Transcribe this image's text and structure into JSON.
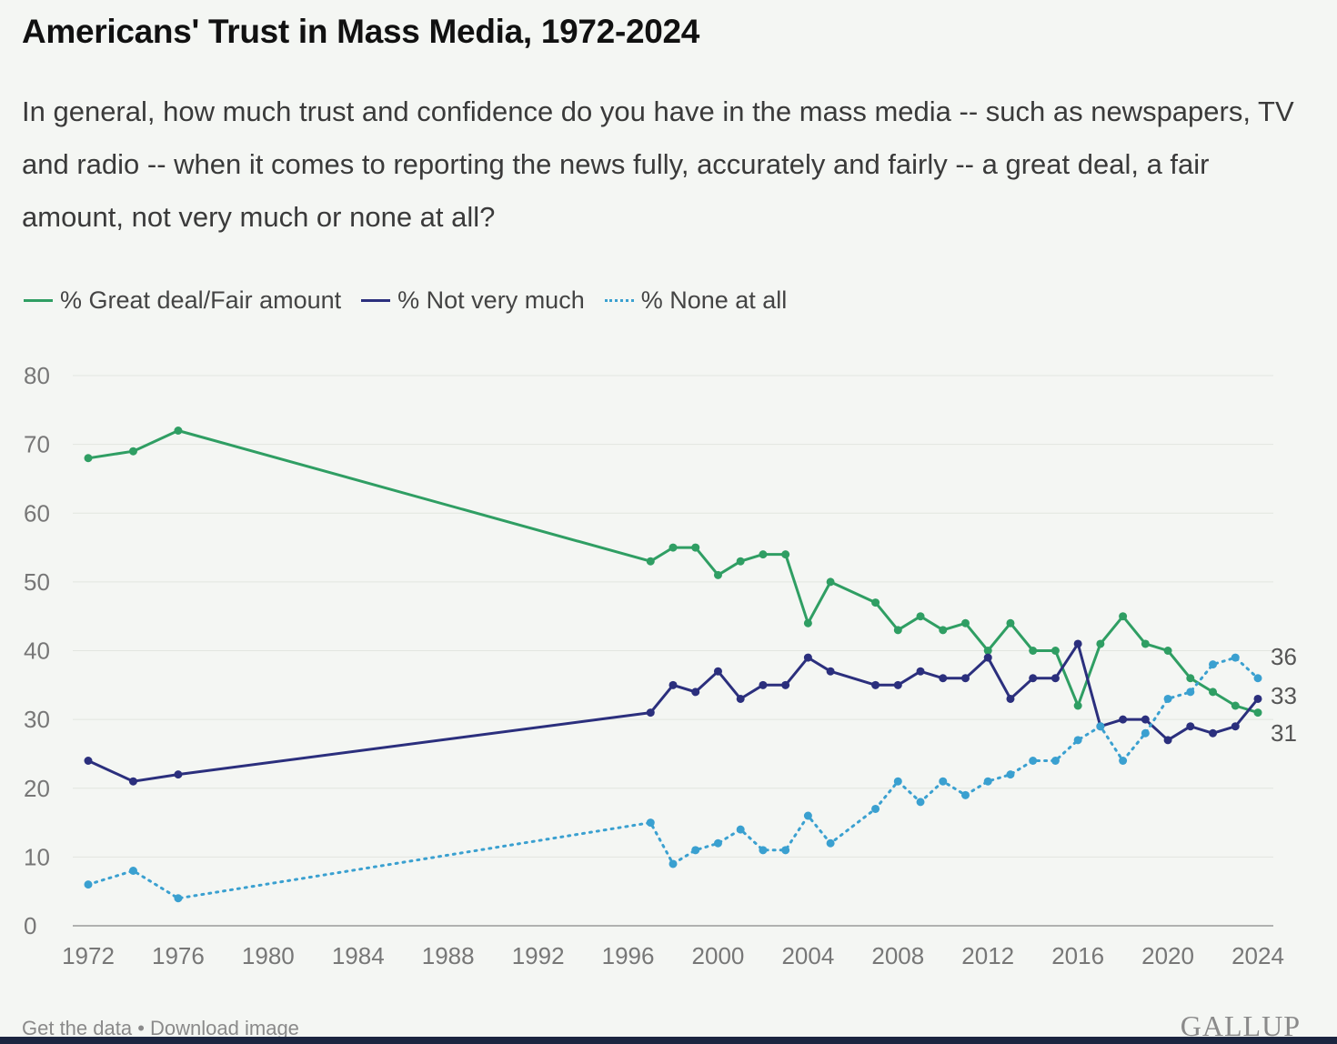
{
  "header": {
    "title": "Americans' Trust in Mass Media, 1972-2024",
    "subtitle": "In general, how much trust and confidence do you have in the mass media -- such as newspapers, TV and radio -- when it comes to reporting the news fully, accurately and fairly -- a great deal, a fair amount, not very much or none at all?"
  },
  "footer": {
    "get_data": "Get the data",
    "separator": "•",
    "download": "Download image",
    "logo": "GALLUP"
  },
  "colors": {
    "great_deal": "#2f9e63",
    "not_very_much": "#2b2f7d",
    "none_at_all": "#3aa0d0",
    "grid": "#e2e5e0"
  },
  "chart_data": {
    "type": "line",
    "title": "Americans' Trust in Mass Media, 1972-2024",
    "xlabel": "",
    "ylabel": "",
    "xlim": [
      1972,
      2024
    ],
    "ylim": [
      0,
      80
    ],
    "x_ticks": [
      "1972",
      "1976",
      "1980",
      "1984",
      "1988",
      "1992",
      "1996",
      "2000",
      "2004",
      "2008",
      "2012",
      "2016",
      "2020",
      "2024"
    ],
    "y_ticks": [
      "0",
      "10",
      "20",
      "30",
      "40",
      "50",
      "60",
      "70",
      "80"
    ],
    "grid": true,
    "legend_position": "top-left",
    "series": [
      {
        "name": "% Great deal/Fair amount",
        "style": "solid",
        "color": "#2f9e63",
        "x": [
          1972,
          1974,
          1976,
          1997,
          1998,
          1999,
          2000,
          2001,
          2002,
          2003,
          2004,
          2005,
          2007,
          2008,
          2009,
          2010,
          2011,
          2012,
          2013,
          2014,
          2015,
          2016,
          2017,
          2018,
          2019,
          2020,
          2021,
          2022,
          2023,
          2024
        ],
        "values": [
          68,
          69,
          72,
          53,
          55,
          55,
          51,
          53,
          54,
          54,
          44,
          50,
          47,
          43,
          45,
          43,
          44,
          40,
          44,
          40,
          40,
          32,
          41,
          45,
          41,
          40,
          36,
          34,
          32,
          31
        ],
        "end_label": "31"
      },
      {
        "name": "% Not very much",
        "style": "solid",
        "color": "#2b2f7d",
        "x": [
          1972,
          1974,
          1976,
          1997,
          1998,
          1999,
          2000,
          2001,
          2002,
          2003,
          2004,
          2005,
          2007,
          2008,
          2009,
          2010,
          2011,
          2012,
          2013,
          2014,
          2015,
          2016,
          2017,
          2018,
          2019,
          2020,
          2021,
          2022,
          2023,
          2024
        ],
        "values": [
          24,
          21,
          22,
          31,
          35,
          34,
          37,
          33,
          35,
          35,
          39,
          37,
          35,
          35,
          37,
          36,
          36,
          39,
          33,
          36,
          36,
          41,
          29,
          30,
          30,
          27,
          29,
          28,
          29,
          33
        ],
        "end_label": "33"
      },
      {
        "name": "% None at all",
        "style": "dotted",
        "color": "#3aa0d0",
        "x": [
          1972,
          1974,
          1976,
          1997,
          1998,
          1999,
          2000,
          2001,
          2002,
          2003,
          2004,
          2005,
          2007,
          2008,
          2009,
          2010,
          2011,
          2012,
          2013,
          2014,
          2015,
          2016,
          2017,
          2018,
          2019,
          2020,
          2021,
          2022,
          2023,
          2024
        ],
        "values": [
          6,
          8,
          4,
          15,
          9,
          11,
          12,
          14,
          11,
          11,
          16,
          12,
          17,
          21,
          18,
          21,
          19,
          21,
          22,
          24,
          24,
          27,
          29,
          24,
          28,
          33,
          34,
          38,
          39,
          36
        ],
        "end_label": "36"
      }
    ]
  }
}
